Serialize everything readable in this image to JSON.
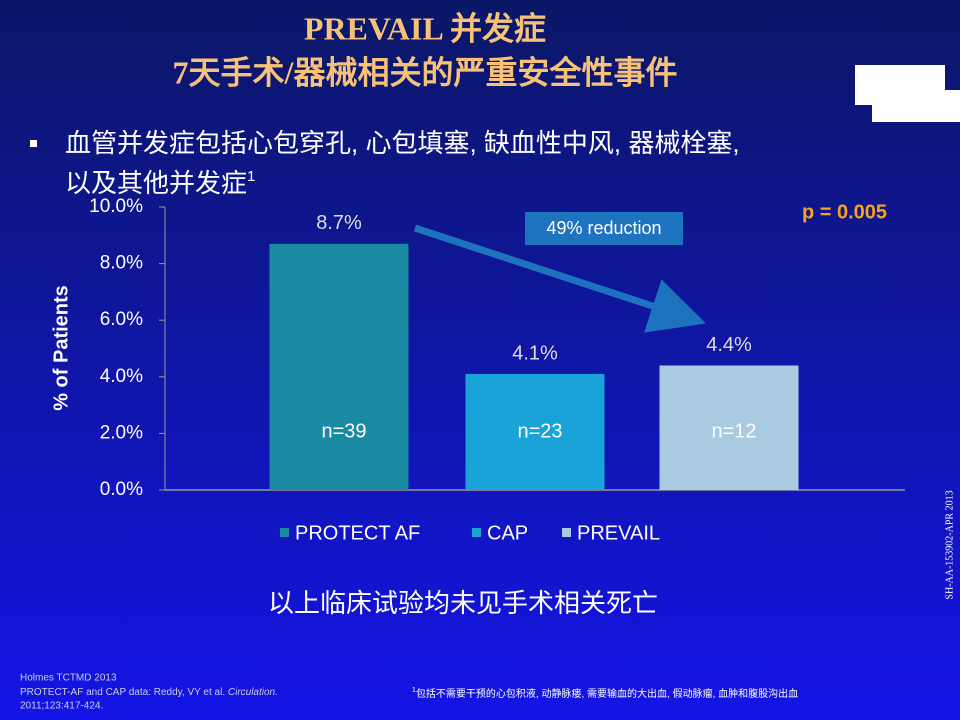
{
  "header": {
    "title": "PREVAIL 并发症",
    "subtitle": "7天手术/器械相关的严重安全性事件"
  },
  "bullet": {
    "line1": "血管并发症包括心包穿孔, 心包填塞, 缺血性中风, 器械栓塞,",
    "line2": "以及其他并发症",
    "note_mark": "1"
  },
  "chart_data": {
    "type": "bar",
    "categories": [
      "PROTECT AF",
      "CAP",
      "PREVAIL"
    ],
    "values": [
      8.7,
      4.1,
      4.4
    ],
    "value_labels": [
      "8.7%",
      "4.1%",
      "4.4%"
    ],
    "colors": [
      "#1a8aa3",
      "#1aa3d9",
      "#a8cbe2"
    ],
    "n_labels": [
      "n=39",
      "n=23",
      "n=12"
    ],
    "ylabel": "% of Patients",
    "ylim": [
      0,
      10
    ],
    "yticks": [
      {
        "value": 0,
        "label": "0.0%"
      },
      {
        "value": 2,
        "label": "2.0%"
      },
      {
        "value": 4,
        "label": "4.0%"
      },
      {
        "value": 6,
        "label": "6.0%"
      },
      {
        "value": 8,
        "label": "8.0%"
      },
      {
        "value": 10,
        "label": "10.0%"
      }
    ],
    "annotation": "49% reduction",
    "p_value": "p = 0.005",
    "legend": "bottom"
  },
  "conclusion": "以上临床试验均未见手术相关死亡",
  "references": {
    "line1": "Holmes TCTMD 2013",
    "line2a": "PROTECT-AF and CAP data: Reddy, VY et al. ",
    "line2b": "Circulation.",
    "line3": "2011;123:417-424."
  },
  "footnote": {
    "mark": "1",
    "text": "包括不需要干预的心包积液, 动静脉瘘, 需要输血的大出血, 假动脉瘤, 血肿和腹股沟出血"
  },
  "code": "SH-AA-153902-APR 2013"
}
